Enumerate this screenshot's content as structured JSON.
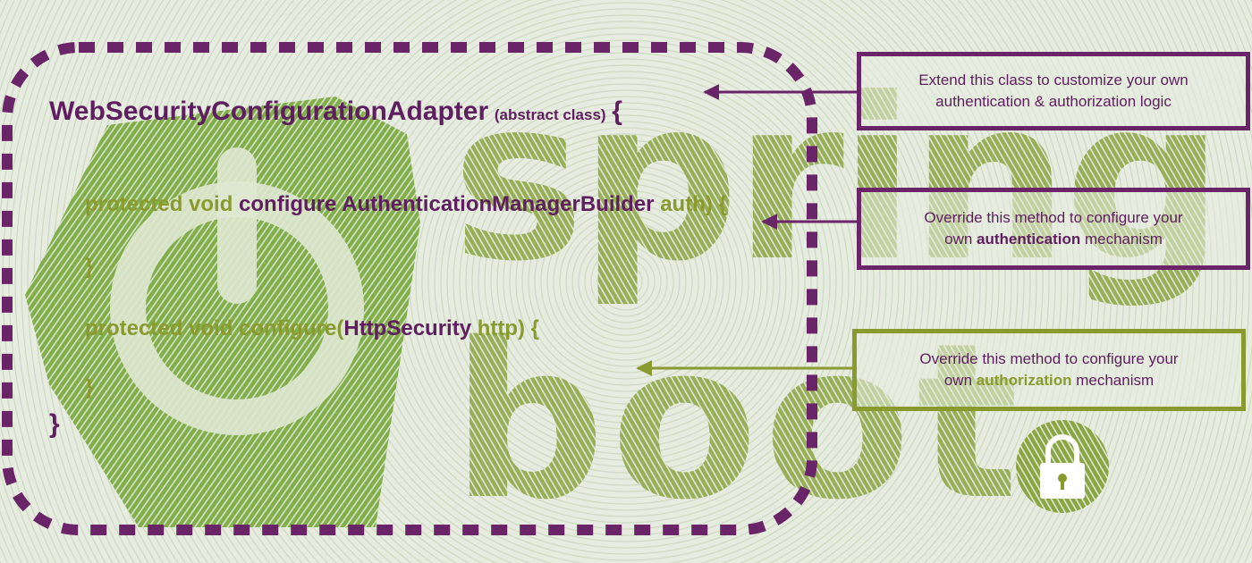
{
  "class_header": {
    "name": "WebSecurityConfigurationAdapter",
    "note": "(abstract class)",
    "open_brace": "{"
  },
  "method1": {
    "modifiers": "protected void",
    "name": "configure",
    "param_type": "AuthenticationManagerBuilder",
    "param_name": "auth) {",
    "close": "}"
  },
  "method2": {
    "modifiers": "protected void",
    "name": "configure(",
    "param_type": "HttpSecurity",
    "param_name": "http) {",
    "close": "}"
  },
  "class_close": "}",
  "callouts": {
    "extend": {
      "line1": "Extend this class to customize your own",
      "line2": "authentication & authorization logic"
    },
    "authentication": {
      "line1": "Override this method to configure your",
      "line2_pre": "own",
      "line2_highlight": "authentication",
      "line2_post": "mechanism"
    },
    "authorization": {
      "line1": "Override this method to configure your",
      "line2_pre": "own",
      "line2_highlight": "authorization",
      "line2_post": "mechanism"
    }
  },
  "background_logo": {
    "word_top": "spring",
    "word_bottom": "boot"
  },
  "colors": {
    "purple": "#5e1e5f",
    "olive": "#8a9a2e",
    "logo_green": "#77a83c",
    "background": "#dde6d4"
  },
  "icons": [
    "spring-power-logo",
    "lock-icon"
  ]
}
